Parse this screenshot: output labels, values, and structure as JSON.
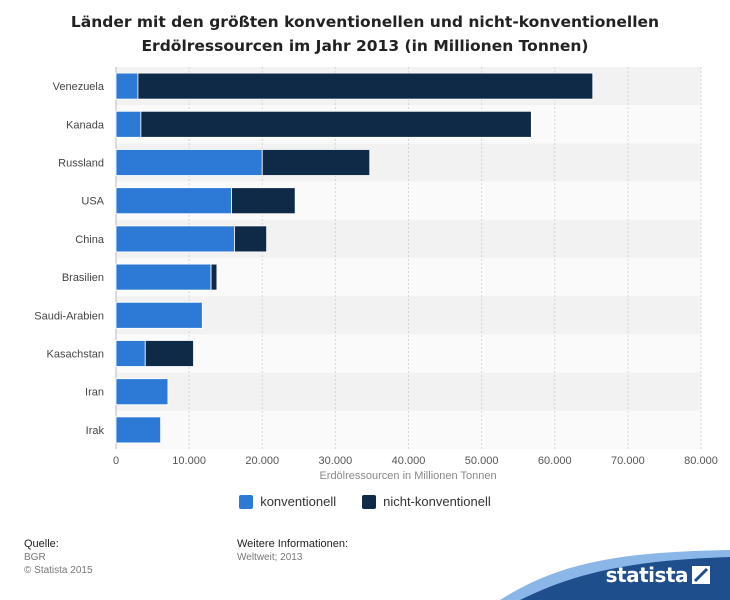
{
  "chart_data": {
    "type": "bar",
    "orientation": "horizontal",
    "stacked": true,
    "title": "Länder mit den größten konventionellen und nicht-konventionellen Erdölressourcen im Jahr 2013 (in Millionen Tonnen)",
    "title_lines": [
      "Länder mit den größten konventionellen und nicht-konventionellen",
      "Erdölressourcen im Jahr 2013 (in Millionen Tonnen)"
    ],
    "xlabel": "Erdölressourcen in Millionen Tonnen",
    "ylabel": "",
    "xlim": [
      0,
      80000
    ],
    "ticks": [
      0,
      10000,
      20000,
      30000,
      40000,
      50000,
      60000,
      70000,
      80000
    ],
    "tick_labels": [
      "0",
      "10.000",
      "20.000",
      "30.000",
      "40.000",
      "50.000",
      "60.000",
      "70.000",
      "80.000"
    ],
    "categories": [
      "Venezuela",
      "Kanada",
      "Russland",
      "USA",
      "China",
      "Brasilien",
      "Saudi-Arabien",
      "Kasachstan",
      "Iran",
      "Irak"
    ],
    "series": [
      {
        "name": "konventionell",
        "color": "#2c7ad6",
        "values": [
          3000,
          3400,
          20000,
          15800,
          16200,
          13000,
          11800,
          4000,
          7100,
          6100
        ]
      },
      {
        "name": "nicht-konventionell",
        "color": "#0e2a47",
        "values": [
          62200,
          53400,
          14700,
          8700,
          4400,
          800,
          0,
          6600,
          0,
          0
        ]
      }
    ],
    "grid": true,
    "legend_position": "bottom"
  },
  "footer": {
    "source_head": "Quelle:",
    "source_lines": [
      "BGR",
      "© Statista 2015"
    ],
    "info_head": "Weitere Informationen:",
    "info_lines": [
      "Weltweit; 2013"
    ]
  },
  "brand": {
    "name": "statista",
    "color": "#1f4e8c",
    "accent": "#2c7ad6"
  }
}
